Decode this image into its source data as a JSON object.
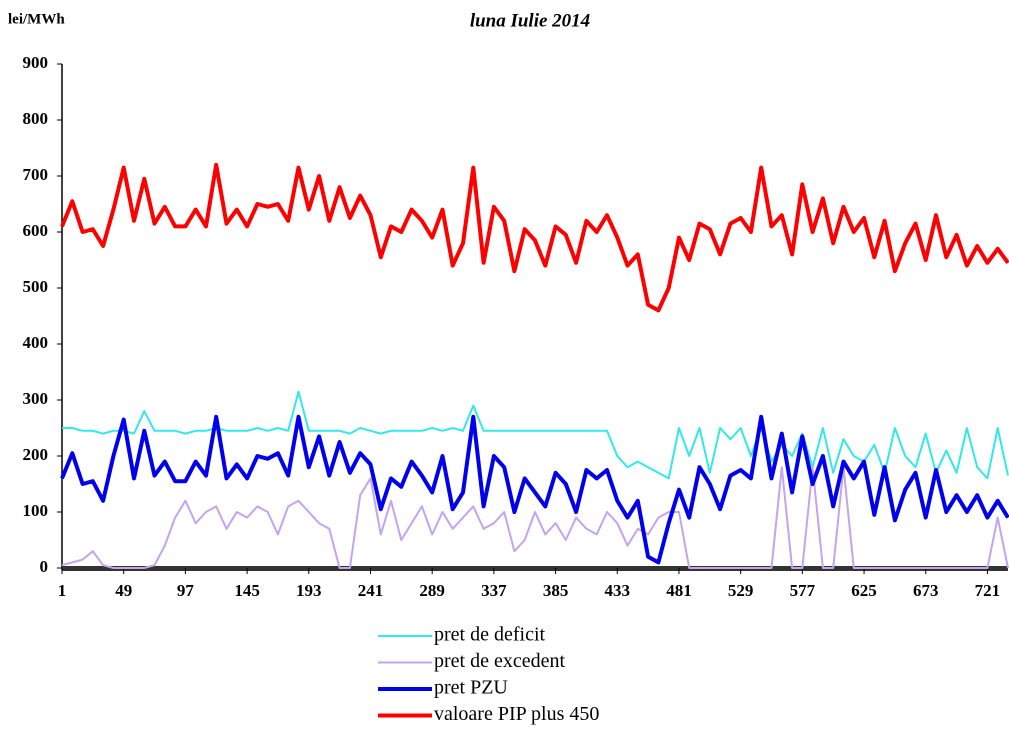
{
  "chart_data": {
    "type": "line",
    "title": "luna  Iulie 2014",
    "y_label": "lei/MWh",
    "x": [
      1,
      9,
      17,
      25,
      33,
      41,
      49,
      57,
      65,
      73,
      81,
      89,
      97,
      105,
      113,
      121,
      129,
      137,
      145,
      153,
      161,
      169,
      177,
      185,
      193,
      201,
      209,
      217,
      225,
      233,
      241,
      249,
      257,
      265,
      273,
      281,
      289,
      297,
      305,
      313,
      321,
      329,
      337,
      345,
      353,
      361,
      369,
      377,
      385,
      393,
      401,
      409,
      417,
      425,
      433,
      441,
      449,
      457,
      465,
      473,
      481,
      489,
      497,
      505,
      513,
      521,
      529,
      537,
      545,
      553,
      561,
      569,
      577,
      585,
      593,
      601,
      609,
      617,
      625,
      633,
      641,
      649,
      657,
      665,
      673,
      681,
      689,
      697,
      705,
      713,
      721,
      729,
      737
    ],
    "xlim": [
      1,
      737
    ],
    "xticks": [
      1,
      49,
      97,
      145,
      193,
      241,
      289,
      337,
      385,
      433,
      481,
      529,
      577,
      625,
      673,
      721
    ],
    "ylim": [
      0,
      900
    ],
    "yticks": [
      0,
      100,
      200,
      300,
      400,
      500,
      600,
      700,
      800,
      900
    ],
    "series": [
      {
        "name": "pret de deficit",
        "color": "#33e8e8",
        "line_width": 2,
        "values": [
          250,
          250,
          245,
          245,
          240,
          245,
          245,
          240,
          280,
          245,
          245,
          245,
          240,
          245,
          245,
          250,
          245,
          245,
          245,
          250,
          245,
          250,
          245,
          315,
          245,
          245,
          245,
          245,
          240,
          250,
          245,
          240,
          245,
          245,
          245,
          245,
          250,
          245,
          250,
          245,
          290,
          245,
          245,
          245,
          245,
          245,
          245,
          245,
          245,
          245,
          245,
          245,
          245,
          245,
          200,
          180,
          190,
          180,
          170,
          160,
          250,
          200,
          250,
          170,
          250,
          230,
          250,
          200,
          250,
          190,
          220,
          200,
          240,
          180,
          250,
          170,
          230,
          200,
          190,
          220,
          170,
          250,
          200,
          180,
          240,
          170,
          210,
          170,
          250,
          180,
          160,
          250,
          165
        ]
      },
      {
        "name": "pret de excedent",
        "color": "#c3a4ee",
        "line_width": 2,
        "values": [
          5,
          10,
          15,
          30,
          5,
          0,
          0,
          0,
          0,
          5,
          40,
          90,
          120,
          80,
          100,
          110,
          70,
          100,
          90,
          110,
          100,
          60,
          110,
          120,
          100,
          80,
          70,
          0,
          0,
          130,
          160,
          60,
          120,
          50,
          80,
          110,
          60,
          100,
          70,
          90,
          110,
          70,
          80,
          100,
          30,
          50,
          100,
          60,
          80,
          50,
          90,
          70,
          60,
          100,
          80,
          40,
          70,
          60,
          90,
          100,
          100,
          0,
          0,
          0,
          0,
          0,
          0,
          0,
          0,
          0,
          180,
          0,
          0,
          180,
          0,
          0,
          180,
          0,
          0,
          0,
          0,
          0,
          0,
          0,
          0,
          0,
          0,
          0,
          0,
          0,
          0,
          90,
          0
        ]
      },
      {
        "name": "pret PZU",
        "color": "#0000ee",
        "line_width": 4,
        "values": [
          160,
          205,
          150,
          155,
          120,
          200,
          265,
          160,
          245,
          165,
          190,
          155,
          155,
          190,
          165,
          270,
          160,
          185,
          160,
          200,
          195,
          205,
          165,
          270,
          180,
          235,
          165,
          225,
          170,
          205,
          185,
          105,
          160,
          145,
          190,
          165,
          135,
          200,
          105,
          135,
          270,
          110,
          200,
          180,
          100,
          160,
          135,
          110,
          170,
          150,
          100,
          175,
          160,
          175,
          120,
          90,
          120,
          20,
          10,
          80,
          140,
          90,
          180,
          150,
          105,
          165,
          175,
          160,
          270,
          160,
          240,
          135,
          235,
          150,
          200,
          110,
          190,
          160,
          190,
          95,
          180,
          85,
          140,
          170,
          90,
          175,
          100,
          130,
          100,
          130,
          90,
          120,
          90
        ]
      },
      {
        "name": "valoare PIP plus 450",
        "color": "#ff0000",
        "line_width": 4,
        "values": [
          610,
          655,
          600,
          605,
          575,
          640,
          715,
          620,
          695,
          615,
          645,
          610,
          610,
          640,
          610,
          720,
          615,
          640,
          610,
          650,
          645,
          650,
          620,
          715,
          640,
          700,
          620,
          680,
          625,
          665,
          630,
          555,
          610,
          600,
          640,
          620,
          590,
          640,
          540,
          580,
          715,
          545,
          645,
          620,
          530,
          605,
          585,
          540,
          610,
          595,
          545,
          620,
          600,
          630,
          590,
          540,
          560,
          470,
          460,
          500,
          590,
          550,
          615,
          605,
          560,
          615,
          625,
          600,
          715,
          610,
          630,
          560,
          685,
          600,
          660,
          580,
          645,
          600,
          625,
          555,
          620,
          530,
          580,
          615,
          550,
          630,
          555,
          595,
          540,
          575,
          545,
          570,
          545
        ]
      }
    ]
  }
}
